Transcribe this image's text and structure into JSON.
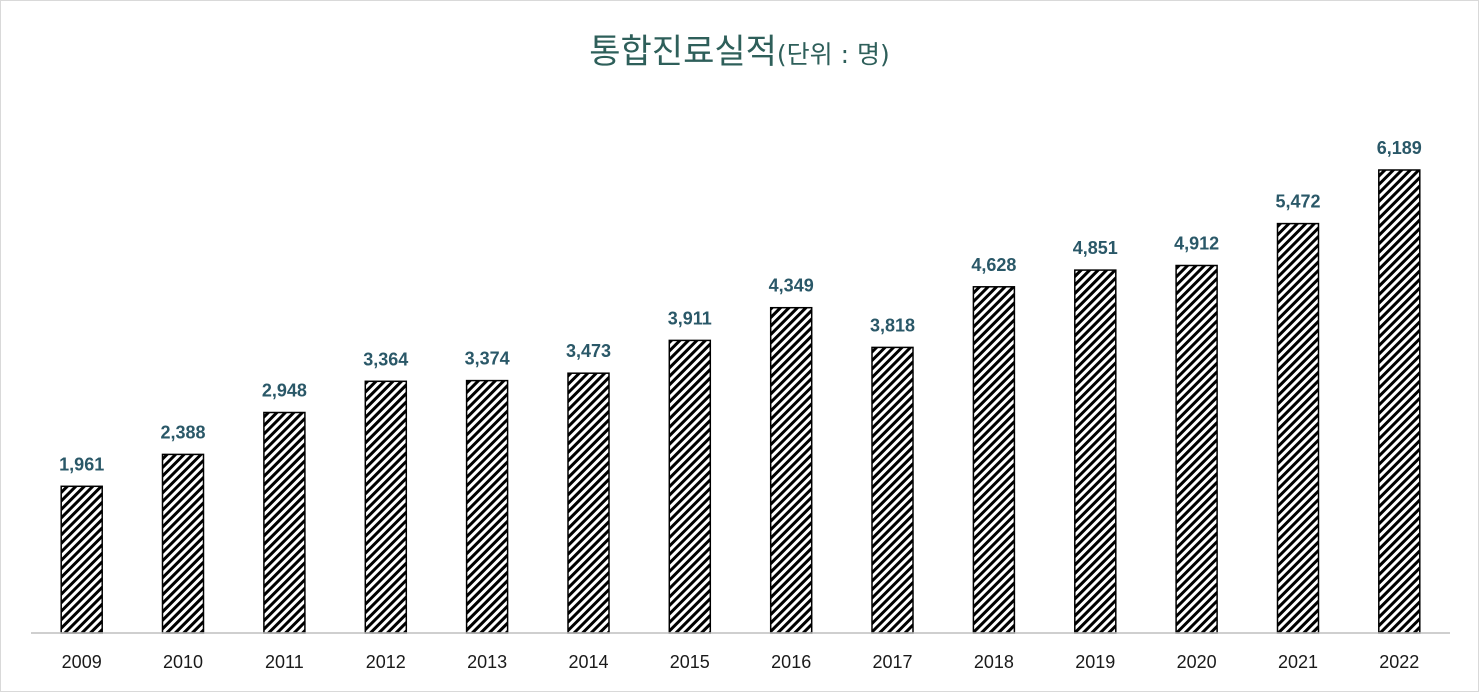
{
  "chart_data": {
    "type": "bar",
    "title": "통합진료실적",
    "title_unit": "(단위 : 명)",
    "categories": [
      "2009",
      "2010",
      "2011",
      "2012",
      "2013",
      "2014",
      "2015",
      "2016",
      "2017",
      "2018",
      "2019",
      "2020",
      "2021",
      "2022"
    ],
    "values": [
      1961,
      2388,
      2948,
      3364,
      3374,
      3473,
      3911,
      4349,
      3818,
      4628,
      4851,
      4912,
      5472,
      6189
    ],
    "value_labels": [
      "1,961",
      "2,388",
      "2,948",
      "3,364",
      "3,374",
      "3,473",
      "3,911",
      "4,349",
      "3,818",
      "4,628",
      "4,851",
      "4,912",
      "5,472",
      "6,189"
    ],
    "ylim": [
      0,
      6189
    ],
    "grid": false,
    "legend": "none",
    "bar_pattern": "diagonal-hatch",
    "colors": {
      "title": "#2e5f5a",
      "value_label": "#2a5868",
      "bar_fill": "#000000",
      "axis": "#bfbfbf"
    }
  }
}
